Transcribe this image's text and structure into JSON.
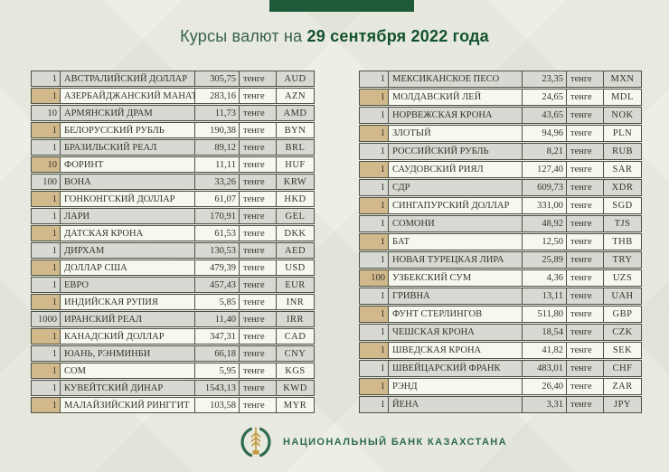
{
  "header": {
    "title_prefix": "Курсы валют на",
    "title_date": "29 сентября 2022 года"
  },
  "tables": {
    "left": {
      "rows": [
        [
          "1",
          "АВСТРАЛИЙСКИЙ ДОЛЛАР",
          "305,75",
          "тенге",
          "AUD"
        ],
        [
          "1",
          "АЗЕРБАЙДЖАНСКИЙ МАНАТ",
          "283,16",
          "тенге",
          "AZN"
        ],
        [
          "10",
          "АРМЯНСКИЙ ДРАМ",
          "11,73",
          "тенге",
          "AMD"
        ],
        [
          "1",
          "БЕЛОРУССКИЙ РУБЛЬ",
          "190,38",
          "тенге",
          "BYN"
        ],
        [
          "1",
          "БРАЗИЛЬСКИЙ РЕАЛ",
          "89,12",
          "тенге",
          "BRL"
        ],
        [
          "10",
          "ФОРИНТ",
          "11,11",
          "тенге",
          "HUF"
        ],
        [
          "100",
          "ВОНА",
          "33,26",
          "тенге",
          "KRW"
        ],
        [
          "1",
          "ГОНКОНГСКИЙ ДОЛЛАР",
          "61,07",
          "тенге",
          "HKD"
        ],
        [
          "1",
          "ЛАРИ",
          "170,91",
          "тенге",
          "GEL"
        ],
        [
          "1",
          "ДАТСКАЯ КРОНА",
          "61,53",
          "тенге",
          "DKK"
        ],
        [
          "1",
          "ДИРХАМ",
          "130,53",
          "тенге",
          "AED"
        ],
        [
          "1",
          "ДОЛЛАР США",
          "479,39",
          "тенге",
          "USD"
        ],
        [
          "1",
          "ЕВРО",
          "457,43",
          "тенге",
          "EUR"
        ],
        [
          "1",
          "ИНДИЙСКАЯ РУПИЯ",
          "5,85",
          "тенге",
          "INR"
        ],
        [
          "1000",
          "ИРАНСКИЙ РЕАЛ",
          "11,40",
          "тенге",
          "IRR"
        ],
        [
          "1",
          "КАНАДСКИЙ ДОЛЛАР",
          "347,31",
          "тенге",
          "CAD"
        ],
        [
          "1",
          "ЮАНЬ, РЭНМИНБИ",
          "66,18",
          "тенге",
          "CNY"
        ],
        [
          "1",
          "СОМ",
          "5,95",
          "тенге",
          "KGS"
        ],
        [
          "1",
          "КУВЕЙТСКИЙ ДИНАР",
          "1543,13",
          "тенге",
          "KWD"
        ],
        [
          "1",
          "МАЛАЙЗИЙСКИЙ РИНГГИТ",
          "103,58",
          "тенге",
          "MYR"
        ]
      ]
    },
    "right": {
      "rows": [
        [
          "1",
          "МЕКСИКАНСКОЕ ПЕСО",
          "23,35",
          "тенге",
          "MXN"
        ],
        [
          "1",
          "МОЛДАВСКИЙ ЛЕЙ",
          "24,65",
          "тенге",
          "MDL"
        ],
        [
          "1",
          "НОРВЕЖСКАЯ КРОНА",
          "43,65",
          "тенге",
          "NOK"
        ],
        [
          "1",
          "ЗЛОТЫЙ",
          "94,96",
          "тенге",
          "PLN"
        ],
        [
          "1",
          "РОССИЙСКИЙ РУБЛЬ",
          "8,21",
          "тенге",
          "RUB"
        ],
        [
          "1",
          "САУДОВСКИЙ РИЯЛ",
          "127,40",
          "тенге",
          "SAR"
        ],
        [
          "1",
          "СДР",
          "609,73",
          "тенге",
          "XDR"
        ],
        [
          "1",
          "СИНГАПУРСКИЙ ДОЛЛАР",
          "331,00",
          "тенге",
          "SGD"
        ],
        [
          "1",
          "СОМОНИ",
          "48,92",
          "тенге",
          "TJS"
        ],
        [
          "1",
          "БАТ",
          "12,50",
          "тенге",
          "THB"
        ],
        [
          "1",
          "НОВАЯ ТУРЕЦКАЯ ЛИРА",
          "25,89",
          "тенге",
          "TRY"
        ],
        [
          "100",
          "УЗБЕКСКИЙ СУМ",
          "4,36",
          "тенге",
          "UZS"
        ],
        [
          "1",
          "ГРИВНА",
          "13,11",
          "тенге",
          "UAH"
        ],
        [
          "1",
          "ФУНТ СТЕРЛИНГОВ",
          "511,80",
          "тенге",
          "GBP"
        ],
        [
          "1",
          "ЧЕШСКАЯ КРОНА",
          "18,54",
          "тенге",
          "CZK"
        ],
        [
          "1",
          "ШВЕДСКАЯ КРОНА",
          "41,82",
          "тенге",
          "SEK"
        ],
        [
          "1",
          "ШВЕЙЦАРСКИЙ ФРАНК",
          "483,01",
          "тенге",
          "CHF"
        ],
        [
          "1",
          "РЭНД",
          "26,40",
          "тенге",
          "ZAR"
        ],
        [
          "1",
          "ЙЕНА",
          "3,31",
          "тенге",
          "JPY"
        ]
      ]
    }
  },
  "footer": {
    "bank_name": "НАЦИОНАЛЬНЫЙ БАНК КАЗАХСТАНА",
    "logo": "nbk-emblem-icon"
  },
  "colors": {
    "accent_green": "#1d5b38",
    "title_green": "#14532f",
    "row_gray": "#d9d9d3",
    "row_light": "#f7f7f0",
    "quantity_tan": "#d2b98b",
    "border": "#4c5245",
    "page_bg": "#edeee5",
    "footer_green": "#2e6b4a",
    "emblem_gold": "#c49a3e"
  }
}
